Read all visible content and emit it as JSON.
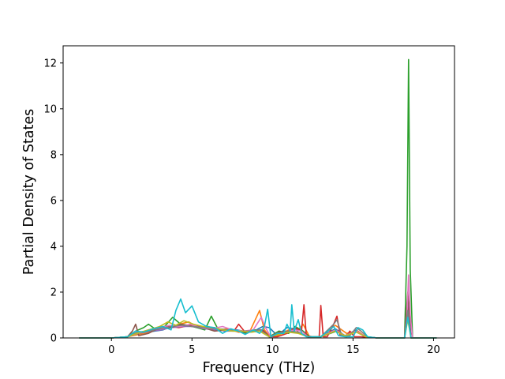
{
  "chart_data": {
    "type": "line",
    "title": "",
    "xlabel": "Frequency (THz)",
    "ylabel": "Partial Density of States",
    "xlim": [
      -3,
      21.3
    ],
    "ylim": [
      0,
      12.75
    ],
    "xticks": [
      0,
      5,
      10,
      15,
      20
    ],
    "yticks": [
      0,
      2,
      4,
      6,
      8,
      10,
      12
    ],
    "grid": false,
    "legend": "none",
    "series": [
      {
        "color": "#1f77b4",
        "x": [
          -2,
          0,
          1,
          1.6,
          2.2,
          3.2,
          3.7,
          4.3,
          5.0,
          5.7,
          6.4,
          7.0,
          7.8,
          8.5,
          9.0,
          9.4,
          9.8,
          10.3,
          10.9,
          11.3,
          11.8,
          12.3,
          13.0,
          13.9,
          14.5,
          15.2,
          15.7,
          16.5,
          18.2,
          18.4,
          18.6,
          20.2
        ],
        "y": [
          0,
          0,
          0.05,
          0.2,
          0.25,
          0.35,
          0.5,
          0.55,
          0.5,
          0.4,
          0.45,
          0.3,
          0.35,
          0.25,
          0.35,
          0.5,
          0.45,
          0.1,
          0.45,
          0.4,
          0.35,
          0.05,
          0.05,
          0.4,
          0.1,
          0.35,
          0.05,
          0,
          0,
          1.0,
          0,
          0
        ]
      },
      {
        "color": "#ff7f0e",
        "x": [
          -2,
          0,
          1,
          1.7,
          2.3,
          3.0,
          3.6,
          4.2,
          4.8,
          5.4,
          6.0,
          6.6,
          7.2,
          7.9,
          8.6,
          9.2,
          9.5,
          9.8,
          10.3,
          11.0,
          11.5,
          11.9,
          12.3,
          13.0,
          13.9,
          14.6,
          15.3,
          15.8,
          16.5,
          18.2,
          18.4,
          18.6,
          20.2
        ],
        "y": [
          0,
          0,
          0.05,
          0.15,
          0.25,
          0.5,
          0.45,
          0.6,
          0.7,
          0.45,
          0.5,
          0.35,
          0.4,
          0.25,
          0.3,
          1.2,
          0.35,
          0.1,
          0.1,
          0.35,
          0.25,
          0.6,
          0.05,
          0.05,
          0.55,
          0.2,
          0.3,
          0.05,
          0,
          0,
          1.3,
          0,
          0
        ]
      },
      {
        "color": "#2ca02c",
        "x": [
          -2,
          0,
          1,
          1.5,
          2.0,
          2.3,
          2.7,
          3.3,
          3.8,
          4.3,
          4.8,
          5.3,
          5.8,
          6.2,
          6.6,
          7.2,
          7.9,
          8.4,
          8.9,
          9.3,
          9.8,
          10.4,
          11.0,
          11.4,
          11.9,
          12.3,
          13.0,
          14.0,
          14.5,
          15.2,
          15.8,
          16.5,
          18.2,
          18.35,
          18.45,
          18.55,
          18.7,
          20.2
        ],
        "y": [
          0,
          0,
          0.05,
          0.3,
          0.45,
          0.6,
          0.4,
          0.5,
          0.9,
          0.6,
          0.55,
          0.45,
          0.35,
          0.95,
          0.4,
          0.35,
          0.3,
          0.2,
          0.35,
          0.3,
          0.05,
          0.3,
          0.2,
          0.5,
          0.3,
          0.05,
          0.05,
          0.3,
          0.1,
          0.3,
          0.05,
          0,
          0,
          4.0,
          12.15,
          3.0,
          0,
          0
        ]
      },
      {
        "color": "#d62728",
        "x": [
          -2,
          0,
          1,
          1.6,
          2.2,
          3.0,
          3.6,
          4.2,
          4.9,
          5.6,
          6.2,
          7.0,
          7.6,
          7.9,
          8.3,
          8.8,
          9.3,
          9.8,
          10.3,
          10.9,
          11.4,
          11.8,
          11.95,
          12.1,
          12.5,
          12.9,
          13.0,
          13.15,
          13.4,
          13.8,
          14.0,
          14.2,
          14.6,
          14.8,
          15.1,
          15.5,
          16.5,
          18.2,
          18.4,
          18.6,
          20.2
        ],
        "y": [
          0,
          0,
          0.05,
          0.2,
          0.3,
          0.4,
          0.5,
          0.45,
          0.55,
          0.5,
          0.4,
          0.35,
          0.3,
          0.6,
          0.25,
          0.3,
          0.35,
          0.05,
          0.05,
          0.2,
          0.45,
          0.3,
          1.45,
          0.1,
          0.05,
          0.05,
          1.42,
          0.05,
          0.05,
          0.6,
          0.95,
          0.1,
          0.05,
          0.3,
          0.05,
          0.05,
          0,
          0,
          1.5,
          0,
          0
        ]
      },
      {
        "color": "#9467bd",
        "x": [
          -2,
          0,
          1,
          1.7,
          2.4,
          3.1,
          3.7,
          4.4,
          5.1,
          5.8,
          6.5,
          7.2,
          7.9,
          8.6,
          9.2,
          9.8,
          10.4,
          11.0,
          11.6,
          12.2,
          13.0,
          13.9,
          14.5,
          15.2,
          15.8,
          16.5,
          18.2,
          18.4,
          18.6,
          20.2
        ],
        "y": [
          0,
          0,
          0.05,
          0.2,
          0.3,
          0.35,
          0.45,
          0.5,
          0.5,
          0.4,
          0.35,
          0.3,
          0.3,
          0.25,
          0.3,
          0.05,
          0.2,
          0.3,
          0.25,
          0.05,
          0.05,
          0.3,
          0.1,
          0.3,
          0.05,
          0,
          0,
          1.8,
          0,
          0
        ]
      },
      {
        "color": "#8c564b",
        "x": [
          -2,
          0,
          1,
          1.3,
          1.5,
          1.7,
          2.3,
          3.0,
          3.7,
          4.3,
          5.0,
          5.7,
          6.4,
          7.1,
          7.8,
          8.5,
          9.0,
          9.4,
          9.8,
          10.4,
          11.0,
          11.6,
          12.2,
          13.0,
          13.9,
          14.5,
          15.2,
          15.8,
          16.5,
          18.2,
          18.4,
          18.6,
          20.2
        ],
        "y": [
          0,
          0,
          0.05,
          0.3,
          0.6,
          0.1,
          0.2,
          0.45,
          0.45,
          0.6,
          0.5,
          0.45,
          0.3,
          0.35,
          0.3,
          0.25,
          0.3,
          0.35,
          0.05,
          0.25,
          0.3,
          0.25,
          0.05,
          0.05,
          0.35,
          0.1,
          0.3,
          0.05,
          0,
          0,
          2.0,
          0,
          0
        ]
      },
      {
        "color": "#e377c2",
        "x": [
          -2,
          0,
          1,
          1.6,
          2.3,
          3.0,
          3.6,
          4.2,
          4.9,
          5.5,
          6.2,
          6.9,
          7.5,
          8.2,
          8.8,
          9.3,
          9.6,
          9.9,
          10.4,
          11.0,
          11.4,
          11.8,
          12.2,
          13.0,
          13.9,
          14.5,
          15.2,
          15.8,
          16.5,
          18.2,
          18.35,
          18.45,
          18.55,
          18.7,
          20.2
        ],
        "y": [
          0,
          0,
          0.05,
          0.2,
          0.35,
          0.45,
          0.55,
          0.5,
          0.6,
          0.45,
          0.4,
          0.5,
          0.35,
          0.3,
          0.35,
          0.9,
          0.4,
          0.05,
          0.2,
          0.3,
          0.35,
          0.3,
          0.05,
          0.05,
          0.35,
          0.1,
          0.3,
          0.05,
          0,
          0,
          1.0,
          2.75,
          1.0,
          0,
          0
        ]
      },
      {
        "color": "#7f7f7f",
        "x": [
          -2,
          0,
          1,
          1.6,
          2.3,
          3.0,
          3.7,
          4.4,
          5.1,
          5.8,
          6.5,
          7.2,
          7.9,
          8.6,
          9.2,
          9.8,
          10.4,
          11.0,
          11.6,
          12.2,
          13.0,
          13.8,
          14.0,
          14.3,
          14.8,
          15.2,
          15.5,
          15.9,
          16.5,
          18.2,
          18.4,
          18.6,
          20.2
        ],
        "y": [
          0,
          0,
          0.05,
          0.25,
          0.3,
          0.4,
          0.5,
          0.55,
          0.5,
          0.45,
          0.4,
          0.35,
          0.3,
          0.3,
          0.35,
          0.05,
          0.2,
          0.3,
          0.25,
          0.05,
          0.05,
          0.6,
          0.8,
          0.1,
          0.1,
          0.45,
          0.3,
          0.05,
          0,
          0,
          1.2,
          0,
          0
        ]
      },
      {
        "color": "#bcbd22",
        "x": [
          -2,
          0,
          1,
          1.6,
          2.3,
          3.0,
          3.5,
          4.0,
          4.5,
          5.1,
          5.7,
          6.3,
          6.9,
          7.5,
          8.1,
          8.7,
          9.2,
          9.8,
          10.4,
          11.0,
          11.6,
          12.2,
          13.0,
          13.9,
          14.5,
          15.2,
          15.8,
          16.5,
          18.2,
          18.4,
          18.6,
          20.2
        ],
        "y": [
          0,
          0,
          0.05,
          0.2,
          0.35,
          0.5,
          0.7,
          0.55,
          0.75,
          0.6,
          0.5,
          0.45,
          0.35,
          0.3,
          0.3,
          0.25,
          0.3,
          0.05,
          0.15,
          0.25,
          0.2,
          0.05,
          0.05,
          0.3,
          0.1,
          0.25,
          0.05,
          0,
          0,
          0.8,
          0,
          0
        ]
      },
      {
        "color": "#17becf",
        "x": [
          -2,
          0,
          1,
          1.5,
          2.0,
          2.6,
          3.2,
          3.7,
          4.0,
          4.3,
          4.6,
          5.0,
          5.4,
          5.9,
          6.4,
          6.9,
          7.4,
          7.9,
          8.3,
          8.8,
          9.2,
          9.5,
          9.7,
          9.9,
          10.3,
          10.7,
          10.9,
          11.1,
          11.2,
          11.35,
          11.6,
          11.8,
          12.1,
          12.5,
          13.0,
          13.8,
          14.1,
          14.5,
          15.0,
          15.3,
          15.6,
          15.9,
          16.5,
          18.2,
          18.4,
          18.6,
          20.2
        ],
        "y": [
          0,
          0,
          0.05,
          0.3,
          0.25,
          0.4,
          0.5,
          0.35,
          1.2,
          1.7,
          1.1,
          1.4,
          0.7,
          0.5,
          0.45,
          0.2,
          0.4,
          0.3,
          0.15,
          0.35,
          0.2,
          0.5,
          1.25,
          0.05,
          0.2,
          0.2,
          0.6,
          0.3,
          1.45,
          0.3,
          0.8,
          0.2,
          0.05,
          0.05,
          0.05,
          0.5,
          0.1,
          0.05,
          0.05,
          0.45,
          0.35,
          0.05,
          0,
          0,
          0.9,
          0,
          0
        ]
      }
    ]
  }
}
